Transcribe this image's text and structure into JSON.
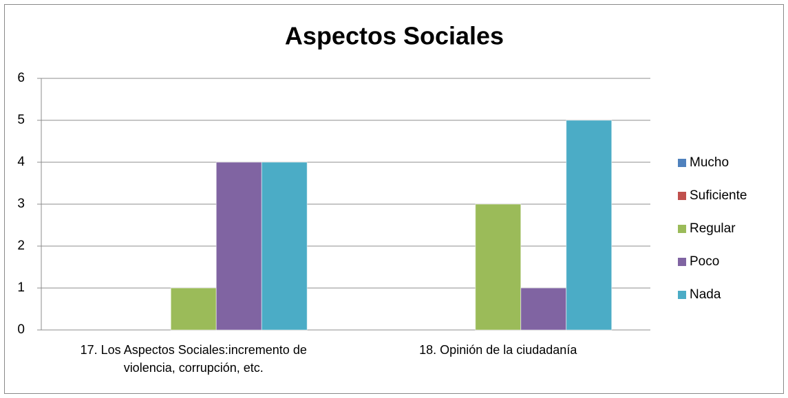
{
  "chart_data": {
    "type": "bar",
    "title": "Aspectos Sociales",
    "categories": [
      "17. Los Aspectos Sociales:incremento de violencia, corrupción, etc.",
      "18. Opinión de la ciudadanía"
    ],
    "series": [
      {
        "name": "Mucho",
        "color": "#4f81bd",
        "values": [
          0,
          0
        ]
      },
      {
        "name": "Suficiente",
        "color": "#c0504d",
        "values": [
          0,
          0
        ]
      },
      {
        "name": "Regular",
        "color": "#9bbb59",
        "values": [
          1,
          3
        ]
      },
      {
        "name": "Poco",
        "color": "#8064a2",
        "values": [
          4,
          1
        ]
      },
      {
        "name": "Nada",
        "color": "#4bacc6",
        "values": [
          4,
          5
        ]
      }
    ],
    "ylim": [
      0,
      6
    ],
    "yticks": [
      0,
      1,
      2,
      3,
      4,
      5,
      6
    ],
    "grid": true,
    "legend": "right"
  }
}
